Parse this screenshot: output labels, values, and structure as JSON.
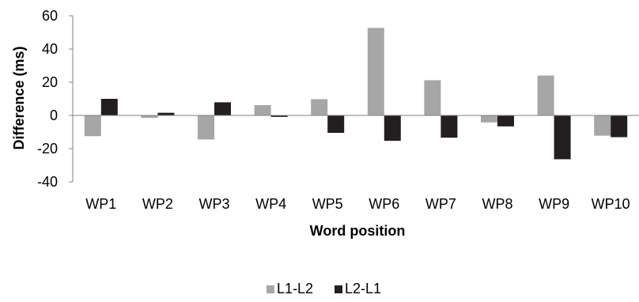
{
  "chart_data": {
    "type": "bar",
    "categories": [
      "WP1",
      "WP2",
      "WP3",
      "WP4",
      "WP5",
      "WP6",
      "WP7",
      "WP8",
      "WP9",
      "WP10"
    ],
    "series": [
      {
        "name": "L1-L2",
        "color": "#a6a6a6",
        "values": [
          -12.5,
          -1.5,
          -14.5,
          6.2,
          9.8,
          52.7,
          21.2,
          -4.2,
          24.0,
          -12.2
        ]
      },
      {
        "name": "L2-L1",
        "color": "#231f20",
        "values": [
          10.0,
          1.6,
          7.9,
          -0.9,
          -10.5,
          -15.3,
          -13.4,
          -6.6,
          -26.4,
          -13.1
        ]
      }
    ],
    "xlabel": "Word position",
    "ylabel": "Difference (ms)",
    "ylim": [
      -40,
      60
    ],
    "yticks": [
      -40,
      -20,
      0,
      20,
      40,
      60
    ],
    "grid": false,
    "legend_position": "bottom-center"
  }
}
